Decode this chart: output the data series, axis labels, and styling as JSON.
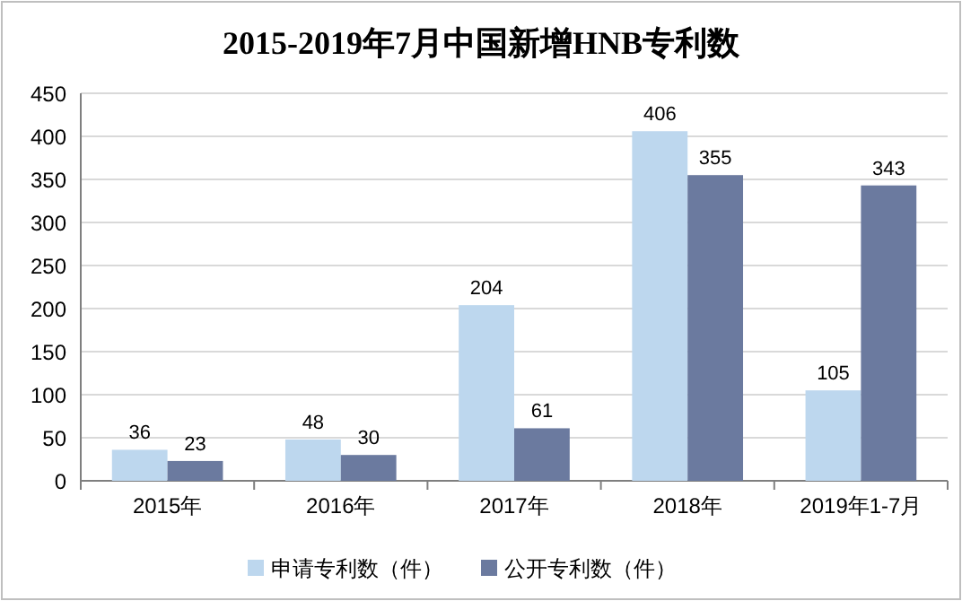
{
  "chart_data": {
    "type": "bar",
    "title": "2015-2019年7月中国新增HNB专利数",
    "categories": [
      "2015年",
      "2016年",
      "2017年",
      "2018年",
      "2019年1-7月"
    ],
    "series": [
      {
        "name": "申请专利数（件）",
        "color": "#bdd7ee",
        "values": [
          36,
          48,
          204,
          406,
          105
        ]
      },
      {
        "name": "公开专利数（件）",
        "color": "#6b7a9f",
        "values": [
          23,
          30,
          61,
          355,
          343
        ]
      }
    ],
    "ylim": [
      0,
      450
    ],
    "yticks": [
      0,
      50,
      100,
      150,
      200,
      250,
      300,
      350,
      400,
      450
    ],
    "grid": "y",
    "legend": "bottom",
    "data_labels": true
  }
}
